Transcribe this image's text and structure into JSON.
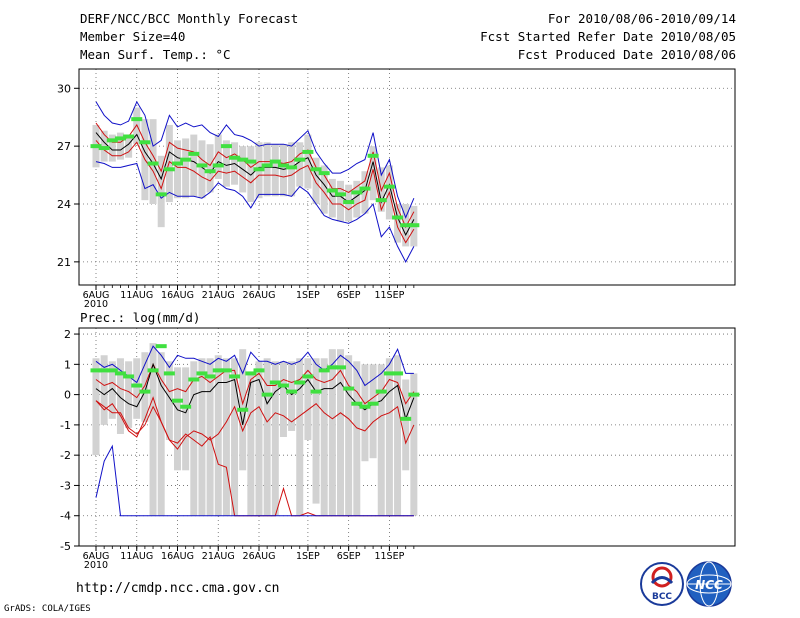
{
  "header": {
    "title": "DERF/NCC/BCC Monthly Forecast",
    "member": "Member Size=40",
    "variable": "Mean Surf. Temp.: °C",
    "period": "For 2010/08/06-2010/09/14",
    "started": "Fcst Started Refer Date 2010/08/05",
    "produced": "Fcst Produced Date 2010/08/06"
  },
  "footer": {
    "url": "http://cmdp.ncc.cma.gov.cn",
    "grads": "GrADS: COLA/IGES",
    "logo_bcc": "BCC",
    "logo_ncc": "NCC"
  },
  "chart_data": [
    {
      "type": "line",
      "title": "Mean Surf. Temp.: °C",
      "ylabel": "°C",
      "ylim": [
        19.8,
        31
      ],
      "yticks": [
        21,
        24,
        27,
        30
      ],
      "xticks": [
        {
          "day": 1,
          "label": "6AUG",
          "sub": "2010"
        },
        {
          "day": 6,
          "label": "11AUG"
        },
        {
          "day": 11,
          "label": "16AUG"
        },
        {
          "day": 16,
          "label": "21AUG"
        },
        {
          "day": 21,
          "label": "26AUG"
        },
        {
          "day": 27,
          "label": "1SEP"
        },
        {
          "day": 32,
          "label": "6SEP"
        },
        {
          "day": 37,
          "label": "11SEP"
        }
      ],
      "days": 40,
      "grid": true,
      "boxes": [
        [
          25.9,
          28.1
        ],
        [
          26.2,
          27.8
        ],
        [
          26.2,
          27.6
        ],
        [
          26.3,
          27.7
        ],
        [
          26.4,
          27.6
        ],
        [
          27.1,
          29.0
        ],
        [
          24.2,
          28.4
        ],
        [
          24.0,
          28.4
        ],
        [
          22.8,
          26.5
        ],
        [
          24.1,
          28.1
        ],
        [
          24.3,
          27.3
        ],
        [
          24.3,
          27.4
        ],
        [
          24.4,
          27.6
        ],
        [
          24.3,
          27.3
        ],
        [
          24.6,
          27.1
        ],
        [
          25.3,
          27.6
        ],
        [
          24.9,
          27.3
        ],
        [
          25.0,
          27.2
        ],
        [
          24.6,
          27.0
        ],
        [
          24.1,
          27.0
        ],
        [
          24.3,
          27.2
        ],
        [
          24.4,
          27.2
        ],
        [
          24.4,
          27.1
        ],
        [
          24.4,
          27.1
        ],
        [
          24.4,
          27.2
        ],
        [
          24.9,
          27.2
        ],
        [
          24.8,
          27.6
        ],
        [
          24.0,
          26.4
        ],
        [
          23.5,
          26.0
        ],
        [
          23.3,
          25.3
        ],
        [
          23.1,
          25.2
        ],
        [
          23.1,
          25.0
        ],
        [
          23.3,
          25.2
        ],
        [
          23.5,
          25.7
        ],
        [
          24.2,
          27.0
        ],
        [
          23.6,
          25.9
        ],
        [
          23.2,
          26.0
        ],
        [
          22.0,
          24.0
        ],
        [
          21.8,
          24.0
        ],
        [
          21.8,
          23.9
        ]
      ],
      "series": [
        {
          "name": "ensemble max",
          "color": "#1010c8",
          "values": [
            29.3,
            28.6,
            28.2,
            28.1,
            28.3,
            29.3,
            28.6,
            27.0,
            27.3,
            28.6,
            28.0,
            28.2,
            28.0,
            28.1,
            27.7,
            27.5,
            28.1,
            27.6,
            27.5,
            27.3,
            27.0,
            27.1,
            27.1,
            27.1,
            27.0,
            27.4,
            27.8,
            26.7,
            26.1,
            25.6,
            25.6,
            25.8,
            26.1,
            26.3,
            27.7,
            25.5,
            26.3,
            24.4,
            23.3,
            24.3
          ]
        },
        {
          "name": "upper",
          "color": "#d01010",
          "values": [
            28.2,
            27.6,
            27.2,
            27.2,
            27.5,
            28.1,
            27.2,
            26.5,
            25.7,
            27.2,
            26.9,
            26.8,
            26.7,
            26.3,
            26.0,
            26.7,
            26.4,
            26.6,
            26.3,
            25.9,
            26.2,
            26.2,
            26.2,
            26.1,
            26.2,
            26.6,
            26.8,
            25.9,
            25.5,
            24.8,
            24.8,
            24.6,
            24.9,
            25.2,
            26.7,
            24.7,
            25.6,
            23.8,
            22.8,
            23.6
          ]
        },
        {
          "name": "ensemble mean",
          "color": "#000000",
          "values": [
            27.7,
            27.2,
            26.8,
            26.8,
            27.1,
            27.6,
            26.7,
            26.1,
            25.3,
            26.7,
            26.4,
            26.3,
            26.2,
            25.9,
            25.6,
            26.2,
            26.0,
            26.1,
            25.8,
            25.5,
            25.9,
            25.9,
            25.9,
            25.8,
            25.9,
            26.2,
            26.4,
            25.5,
            25.0,
            24.4,
            24.4,
            24.1,
            24.4,
            24.7,
            26.2,
            24.1,
            25.0,
            23.3,
            22.4,
            23.2
          ]
        },
        {
          "name": "lower",
          "color": "#d01010",
          "values": [
            27.3,
            26.8,
            26.5,
            26.5,
            26.7,
            27.2,
            26.3,
            25.7,
            24.8,
            26.2,
            25.9,
            25.9,
            25.7,
            25.4,
            25.2,
            25.7,
            25.6,
            25.7,
            25.4,
            25.1,
            25.5,
            25.5,
            25.5,
            25.4,
            25.5,
            25.8,
            26.0,
            25.1,
            24.6,
            24.0,
            24.0,
            23.7,
            24.0,
            24.2,
            25.8,
            23.7,
            24.6,
            22.8,
            22.0,
            22.7
          ]
        },
        {
          "name": "ensemble min",
          "color": "#1010c8",
          "values": [
            26.2,
            26.1,
            25.9,
            25.9,
            26.0,
            26.1,
            24.8,
            25.0,
            24.3,
            24.6,
            24.4,
            24.4,
            24.4,
            24.3,
            24.6,
            25.1,
            24.8,
            24.7,
            24.4,
            23.8,
            24.5,
            24.5,
            24.5,
            24.5,
            24.4,
            24.9,
            24.6,
            24.0,
            23.4,
            23.2,
            23.1,
            23.0,
            23.2,
            23.5,
            24.0,
            22.3,
            22.8,
            21.8,
            21.0,
            21.8
          ]
        }
      ],
      "markers": {
        "name": "green dashes",
        "color": "#40e040",
        "values": [
          27.0,
          26.9,
          27.3,
          27.4,
          27.5,
          28.4,
          27.2,
          26.1,
          24.5,
          25.8,
          26.1,
          26.3,
          26.6,
          26.0,
          25.7,
          26.0,
          27.0,
          26.4,
          26.3,
          26.2,
          25.8,
          26.0,
          26.2,
          26.0,
          25.9,
          26.3,
          26.7,
          25.8,
          25.6,
          24.7,
          24.5,
          24.1,
          24.6,
          24.8,
          26.5,
          24.2,
          24.9,
          23.3,
          22.9,
          22.9
        ]
      }
    },
    {
      "type": "line",
      "title": "Prec.: log(mm/d)",
      "ylabel": "log(mm/d)",
      "ylim": [
        -5,
        2.2
      ],
      "yticks": [
        -5,
        -4,
        -3,
        -2,
        -1,
        0,
        1,
        2
      ],
      "xticks": [
        {
          "day": 1,
          "label": "6AUG",
          "sub": "2010"
        },
        {
          "day": 6,
          "label": "11AUG"
        },
        {
          "day": 11,
          "label": "16AUG"
        },
        {
          "day": 16,
          "label": "21AUG"
        },
        {
          "day": 21,
          "label": "26AUG"
        },
        {
          "day": 27,
          "label": "1SEP"
        },
        {
          "day": 32,
          "label": "6SEP"
        },
        {
          "day": 37,
          "label": "11SEP"
        }
      ],
      "days": 40,
      "grid": true,
      "boxes": [
        [
          -2.0,
          1.2
        ],
        [
          -1.0,
          1.3
        ],
        [
          -0.8,
          1.1
        ],
        [
          -1.3,
          1.2
        ],
        [
          -1.1,
          1.1
        ],
        [
          -0.8,
          1.2
        ],
        [
          -0.9,
          1.4
        ],
        [
          -4.0,
          1.7
        ],
        [
          -4.0,
          1.4
        ],
        [
          -1.5,
          1.1
        ],
        [
          -2.5,
          0.9
        ],
        [
          -2.5,
          0.9
        ],
        [
          -4.0,
          1.1
        ],
        [
          -4.0,
          1.2
        ],
        [
          -4.0,
          1.2
        ],
        [
          -4.0,
          1.3
        ],
        [
          -4.0,
          1.2
        ],
        [
          -4.0,
          1.2
        ],
        [
          -2.5,
          1.5
        ],
        [
          -4.0,
          0.7
        ],
        [
          -4.0,
          1.1
        ],
        [
          -4.0,
          1.2
        ],
        [
          -4.0,
          1.1
        ],
        [
          -1.4,
          1.1
        ],
        [
          -1.2,
          1.1
        ],
        [
          -4.0,
          1.2
        ],
        [
          -1.5,
          1.2
        ],
        [
          -3.6,
          1.2
        ],
        [
          -4.0,
          1.2
        ],
        [
          -4.0,
          1.5
        ],
        [
          -4.0,
          1.5
        ],
        [
          -4.0,
          1.3
        ],
        [
          -4.0,
          1.1
        ],
        [
          -2.2,
          1.0
        ],
        [
          -2.1,
          1.0
        ],
        [
          -4.0,
          1.0
        ],
        [
          -4.0,
          1.2
        ],
        [
          -4.0,
          1.3
        ],
        [
          -2.5,
          0.5
        ],
        [
          -4.0,
          0.7
        ]
      ],
      "series": [
        {
          "name": "ensemble max",
          "color": "#1010c8",
          "values": [
            1.1,
            0.9,
            1.0,
            0.8,
            0.6,
            0.4,
            1.0,
            1.6,
            1.3,
            0.9,
            1.3,
            1.2,
            1.2,
            1.1,
            1.0,
            1.2,
            1.1,
            1.3,
            0.7,
            1.4,
            1.1,
            1.1,
            1.0,
            1.1,
            1.0,
            1.1,
            1.4,
            1.0,
            0.8,
            1.0,
            1.3,
            1.1,
            0.8,
            0.3,
            0.5,
            0.7,
            1.0,
            1.5,
            0.7,
            0.7
          ]
        },
        {
          "name": "upper",
          "color": "#d01010",
          "values": [
            0.5,
            0.3,
            0.4,
            0.2,
            0.1,
            -0.1,
            0.3,
            1.0,
            0.5,
            0.1,
            0.2,
            0.1,
            0.5,
            0.6,
            0.4,
            0.6,
            0.8,
            0.8,
            -0.3,
            0.5,
            0.7,
            0.3,
            0.3,
            0.5,
            0.4,
            0.5,
            0.8,
            0.5,
            0.4,
            0.5,
            0.8,
            0.3,
            0.1,
            -0.3,
            -0.1,
            0.1,
            0.5,
            0.4,
            -0.3,
            0.1
          ]
        },
        {
          "name": "ensemble mean",
          "color": "#000000",
          "values": [
            0.2,
            0.0,
            0.2,
            -0.1,
            -0.3,
            -0.4,
            0.1,
            1.0,
            0.3,
            -0.1,
            -0.5,
            -0.6,
            0.0,
            0.1,
            0.1,
            0.4,
            0.4,
            0.5,
            -1.0,
            0.4,
            0.5,
            -0.3,
            0.1,
            0.3,
            0.0,
            0.2,
            0.5,
            0.1,
            0.2,
            0.2,
            0.4,
            0.0,
            -0.3,
            -0.5,
            -0.3,
            -0.2,
            0.1,
            0.3,
            -0.8,
            -0.1
          ]
        },
        {
          "name": "lower",
          "color": "#d01010",
          "values": [
            -0.2,
            -0.5,
            -0.3,
            -0.7,
            -1.2,
            -1.4,
            -0.8,
            -0.1,
            -0.9,
            -1.5,
            -1.6,
            -1.3,
            -1.5,
            -1.7,
            -1.4,
            -2.3,
            -2.4,
            -4.0,
            -4.0,
            -4.0,
            -4.0,
            -4.0,
            -4.0,
            -3.1,
            -4.0,
            -4.0,
            -3.9,
            -4.0,
            -4.0,
            -4.0,
            -4.0,
            -4.0,
            -4.0,
            -4.0,
            -4.0,
            -4.0,
            -4.0,
            -4.0,
            -4.0,
            -4.0
          ]
        },
        {
          "name": "ensemble min",
          "color": "#1010c8",
          "values": [
            -3.4,
            -2.2,
            -1.7,
            -4.0,
            -4.0,
            -4.0,
            -4.0,
            -4.0,
            -4.0,
            -4.0,
            -4.0,
            -4.0,
            -4.0,
            -4.0,
            -4.0,
            -4.0,
            -4.0,
            -4.0,
            -4.0,
            -4.0,
            -4.0,
            -4.0,
            -4.0,
            -4.0,
            -4.0,
            -4.0,
            -4.0,
            -4.0,
            -4.0,
            -4.0,
            -4.0,
            -4.0,
            -4.0,
            -4.0,
            -4.0,
            -4.0,
            -4.0,
            -4.0,
            -4.0,
            -4.0
          ]
        }
      ],
      "lower_alt": [
        -0.2,
        -0.4,
        -0.6,
        -0.6,
        -1.1,
        -1.3,
        -1.0,
        -0.4,
        -0.9,
        -1.5,
        -1.8,
        -1.4,
        -1.2,
        -1.3,
        -1.5,
        -1.3,
        -0.9,
        -0.4,
        -1.2,
        -0.6,
        -0.4,
        -0.9,
        -0.6,
        -0.7,
        -0.9,
        -0.7,
        -0.5,
        -0.3,
        -0.6,
        -0.8,
        -0.6,
        -0.8,
        -1.1,
        -1.2,
        -0.9,
        -0.7,
        -0.6,
        -0.4,
        -1.6,
        -1.0
      ],
      "markers": {
        "name": "green dashes",
        "color": "#40e040",
        "values": [
          0.8,
          0.8,
          0.8,
          0.7,
          0.6,
          0.3,
          0.1,
          0.8,
          1.6,
          0.7,
          -0.2,
          -0.4,
          0.5,
          0.7,
          0.6,
          0.8,
          0.8,
          0.6,
          -0.5,
          0.7,
          0.8,
          0.0,
          0.4,
          0.3,
          0.1,
          0.4,
          0.6,
          0.1,
          0.8,
          0.9,
          0.9,
          0.2,
          -0.3,
          -0.4,
          -0.3,
          0.1,
          0.7,
          0.7,
          -0.8,
          0.0
        ]
      }
    }
  ]
}
